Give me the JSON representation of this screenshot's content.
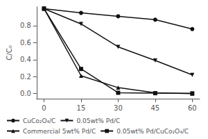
{
  "chart_data": {
    "type": "line",
    "x": [
      0,
      15,
      30,
      45,
      60
    ],
    "series": [
      {
        "name": "CuCo₂O₄/C",
        "values": [
          1.0,
          0.95,
          0.91,
          0.87,
          0.76
        ],
        "color": "#111111",
        "marker": "circle",
        "line_style": "solid"
      },
      {
        "name": "0.05wt% Pd/C",
        "values": [
          1.0,
          0.82,
          0.55,
          0.39,
          0.22
        ],
        "color": "#111111",
        "marker": "triangle-down",
        "line_style": "solid"
      },
      {
        "name": "Commercial 5wt% Pd/C",
        "values": [
          1.0,
          0.21,
          0.07,
          0.01,
          0.0
        ],
        "color": "#111111",
        "marker": "triangle-up",
        "line_style": "solid"
      },
      {
        "name": "0.05wt% Pd/CuCo₂O₄/C",
        "values": [
          1.0,
          0.29,
          0.01,
          0.005,
          0.003
        ],
        "color": "#111111",
        "marker": "square",
        "line_style": "solid"
      }
    ],
    "y_label": "C/C₀",
    "xlim": [
      -3,
      63
    ],
    "ylim": [
      -0.06,
      1.02
    ],
    "xticks": [
      0,
      15,
      30,
      45,
      60
    ],
    "yticks": [
      {
        "value": 0.0,
        "label": "0.0"
      },
      0.2,
      0.4,
      0.6,
      0.8
    ],
    "legend": "lower left",
    "grid": false
  }
}
